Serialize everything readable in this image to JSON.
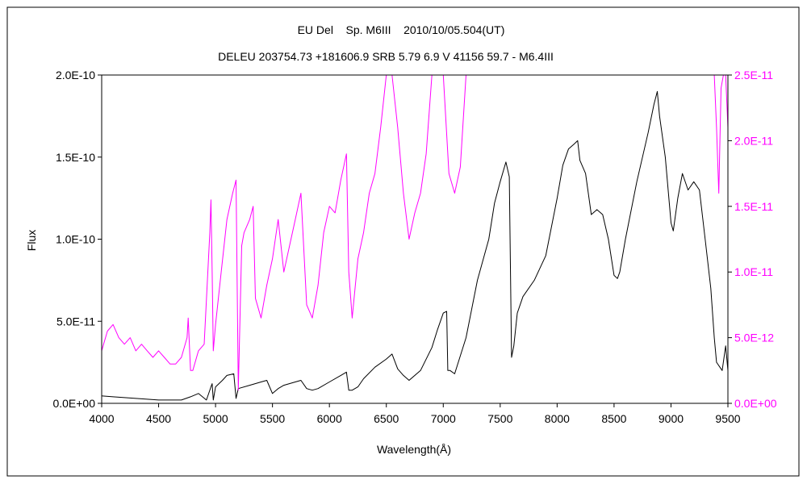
{
  "chart_data": {
    "type": "line",
    "title": "EU Del    Sp. M6III    2010/10/05.504(UT)",
    "subtitle": "DELEU 203754.73 +181606.9 SRB 5.79 6.9 V 41156 59.7 - M6.4III",
    "xlabel": "Wavelength(Å)",
    "ylabel": "Flux",
    "xlim": [
      4000,
      9500
    ],
    "ylim": [
      0,
      2e-10
    ],
    "y2lim": [
      0,
      2.5e-11
    ],
    "x_ticks": [
      "4000",
      "4500",
      "5000",
      "5500",
      "6000",
      "6500",
      "7000",
      "7500",
      "8000",
      "8500",
      "9000",
      "9500"
    ],
    "y_ticks": [
      "0.0E+00",
      "5.0E-11",
      "1.0E-10",
      "1.5E-10",
      "2.0E-10"
    ],
    "y2_ticks": [
      "0.0E+00",
      "5.0E-12",
      "1.0E-11",
      "1.5E-11",
      "2.0E-11",
      "2.5E-11"
    ],
    "grid": false,
    "legend": "none",
    "series": [
      {
        "axis": "left",
        "color": "#000000",
        "x": [
          4000,
          4100,
          4200,
          4300,
          4400,
          4500,
          4600,
          4700,
          4780,
          4850,
          4920,
          4960,
          4970,
          4980,
          5000,
          5060,
          5100,
          5160,
          5180,
          5200,
          5300,
          5400,
          5450,
          5500,
          5550,
          5600,
          5700,
          5750,
          5800,
          5850,
          5900,
          6000,
          6100,
          6150,
          6170,
          6200,
          6250,
          6300,
          6400,
          6500,
          6550,
          6600,
          6650,
          6700,
          6800,
          6900,
          6950,
          7000,
          7030,
          7040,
          7060,
          7100,
          7200,
          7300,
          7400,
          7450,
          7500,
          7550,
          7580,
          7600,
          7620,
          7650,
          7700,
          7800,
          7900,
          8000,
          8050,
          8100,
          8150,
          8180,
          8200,
          8250,
          8300,
          8350,
          8400,
          8450,
          8500,
          8530,
          8550,
          8600,
          8700,
          8800,
          8850,
          8880,
          8900,
          8950,
          9000,
          9020,
          9060,
          9100,
          9150,
          9200,
          9250,
          9300,
          9350,
          9380,
          9400,
          9450,
          9480,
          9500
        ],
        "y": [
          4.5e-12,
          4e-12,
          3.5e-12,
          3e-12,
          2.5e-12,
          2e-12,
          2e-12,
          2e-12,
          4e-12,
          6e-12,
          2e-12,
          1e-11,
          1.2e-11,
          2e-12,
          1e-11,
          1.4e-11,
          1.7e-11,
          1.8e-11,
          3e-12,
          9e-12,
          1.1e-11,
          1.3e-11,
          1.4e-11,
          6e-12,
          9e-12,
          1.1e-11,
          1.3e-11,
          1.4e-11,
          9e-12,
          8e-12,
          9e-12,
          1.3e-11,
          1.7e-11,
          1.9e-11,
          8e-12,
          8e-12,
          1e-11,
          1.5e-11,
          2.2e-11,
          2.7e-11,
          3e-11,
          2.1e-11,
          1.7e-11,
          1.4e-11,
          2e-11,
          3.4e-11,
          4.5e-11,
          5.5e-11,
          5.6e-11,
          2e-11,
          2e-11,
          1.8e-11,
          4e-11,
          7.5e-11,
          1e-10,
          1.22e-10,
          1.35e-10,
          1.47e-10,
          1.38e-10,
          2.8e-11,
          3.5e-11,
          5.5e-11,
          6.5e-11,
          7.5e-11,
          9e-11,
          1.25e-10,
          1.45e-10,
          1.55e-10,
          1.58e-10,
          1.6e-10,
          1.48e-10,
          1.4e-10,
          1.15e-10,
          1.18e-10,
          1.15e-10,
          1e-10,
          7.8e-11,
          7.6e-11,
          8e-11,
          1e-10,
          1.35e-10,
          1.65e-10,
          1.82e-10,
          1.9e-10,
          1.75e-10,
          1.5e-10,
          1.1e-10,
          1.05e-10,
          1.25e-10,
          1.4e-10,
          1.3e-10,
          1.35e-10,
          1.3e-10,
          1e-10,
          7e-11,
          4e-11,
          2.5e-11,
          2e-11,
          3.5e-11,
          2e-11
        ]
      },
      {
        "axis": "right",
        "color": "#ff00ff",
        "x": [
          4000,
          4050,
          4100,
          4150,
          4200,
          4250,
          4300,
          4350,
          4400,
          4450,
          4500,
          4550,
          4600,
          4650,
          4700,
          4750,
          4760,
          4780,
          4800,
          4850,
          4900,
          4950,
          4960,
          4970,
          4980,
          5000,
          5050,
          5100,
          5150,
          5180,
          5200,
          5230,
          5250,
          5300,
          5330,
          5350,
          5400,
          5450,
          5500,
          5550,
          5600,
          5650,
          5700,
          5750,
          5800,
          5850,
          5900,
          5950,
          6000,
          6050,
          6100,
          6150,
          6170,
          6200,
          6250,
          6300,
          6350,
          6400,
          6450,
          6500,
          6550,
          6600,
          6650,
          6700,
          6750,
          6800,
          6850,
          6900,
          6950,
          7000,
          7050,
          7100,
          7150,
          7200,
          7250,
          7260
        ],
        "y": [
          4e-12,
          5.5e-12,
          6e-12,
          5e-12,
          4.5e-12,
          5e-12,
          4e-12,
          4.5e-12,
          4e-12,
          3.5e-12,
          4e-12,
          3.5e-12,
          3e-12,
          3e-12,
          3.5e-12,
          5e-12,
          6.5e-12,
          2.5e-12,
          2.5e-12,
          4e-12,
          4.5e-12,
          1.3e-11,
          1.55e-11,
          1e-11,
          4e-12,
          6e-12,
          1e-11,
          1.4e-11,
          1.6e-11,
          1.7e-11,
          1e-12,
          1.2e-11,
          1.3e-11,
          1.4e-11,
          1.5e-11,
          8e-12,
          6.5e-12,
          9e-12,
          1.1e-11,
          1.4e-11,
          1e-11,
          1.2e-11,
          1.4e-11,
          1.6e-11,
          7.5e-12,
          6.5e-12,
          9e-12,
          1.3e-11,
          1.5e-11,
          1.45e-11,
          1.7e-11,
          1.9e-11,
          1e-11,
          6.5e-12,
          1.1e-11,
          1.3e-11,
          1.6e-11,
          1.75e-11,
          2.1e-11,
          2.5e-11,
          2.5e-11,
          2.1e-11,
          1.6e-11,
          1.25e-11,
          1.45e-11,
          1.6e-11,
          1.9e-11,
          2.5e-11,
          2.5e-11,
          2.5e-11,
          1.75e-11,
          1.6e-11,
          1.8e-11,
          2.5e-11,
          2.5e-11,
          2.5e-11
        ]
      },
      {
        "axis": "right",
        "color": "#ff00ff",
        "x": [
          9380,
          9400,
          9420,
          9440,
          9460,
          9480,
          9500
        ],
        "y": [
          2.5e-11,
          2.1e-11,
          1.6e-11,
          2.4e-11,
          2.5e-11,
          2.5e-11,
          2.1e-11
        ]
      }
    ]
  }
}
